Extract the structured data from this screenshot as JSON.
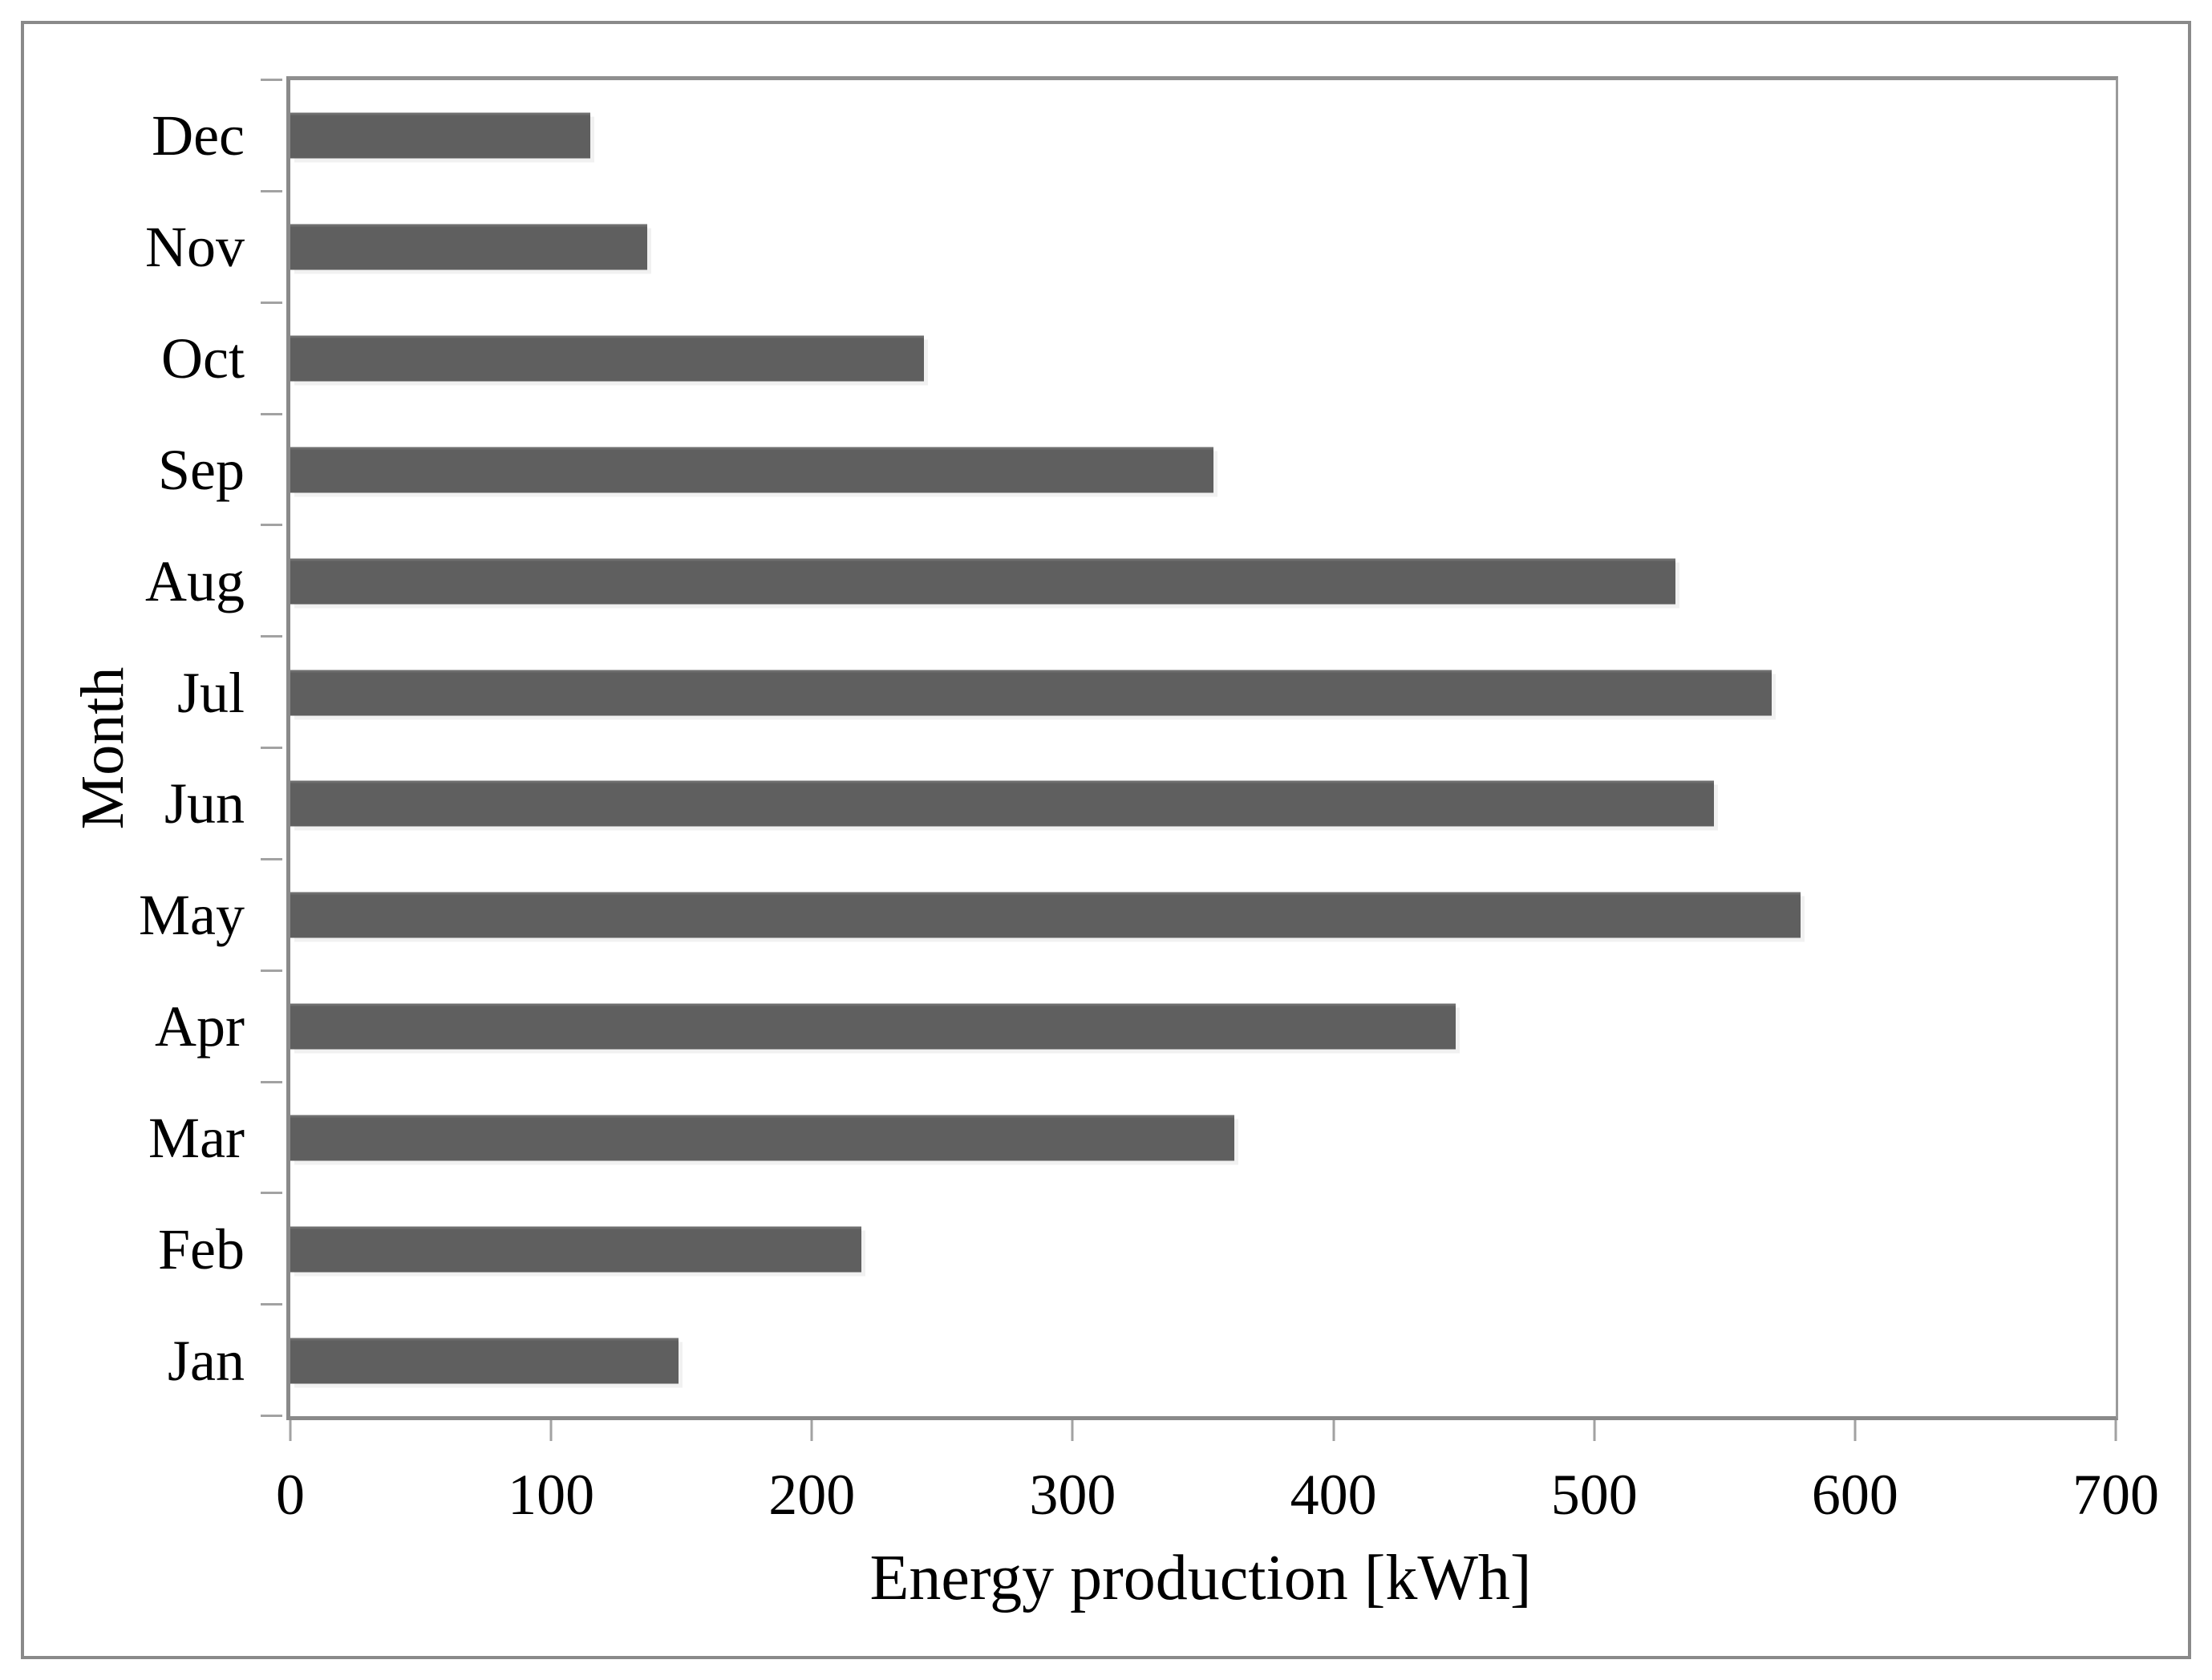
{
  "colors": {
    "bar_fill": "#5f5f5f",
    "axis_line": "#8a8a8a",
    "tick_mark": "#a2a2a2",
    "figure_border": "#8a8a8a",
    "text": "#000000",
    "background": "#ffffff"
  },
  "chart_data": {
    "type": "bar",
    "orientation": "horizontal",
    "title": "",
    "xlabel": "Energy production [kWh]",
    "ylabel": "Month",
    "xlim": [
      0,
      700
    ],
    "xticks": [
      0,
      100,
      200,
      300,
      400,
      500,
      600,
      700
    ],
    "grid": false,
    "legend": false,
    "bars_top_to_bottom": [
      {
        "label": "Dec",
        "value": 115
      },
      {
        "label": "Nov",
        "value": 137
      },
      {
        "label": "Oct",
        "value": 243
      },
      {
        "label": "Sep",
        "value": 354
      },
      {
        "label": "Aug",
        "value": 531
      },
      {
        "label": "Jul",
        "value": 568
      },
      {
        "label": "Jun",
        "value": 546
      },
      {
        "label": "May",
        "value": 579
      },
      {
        "label": "Apr",
        "value": 447
      },
      {
        "label": "Mar",
        "value": 362
      },
      {
        "label": "Feb",
        "value": 219
      },
      {
        "label": "Jan",
        "value": 149
      }
    ]
  }
}
